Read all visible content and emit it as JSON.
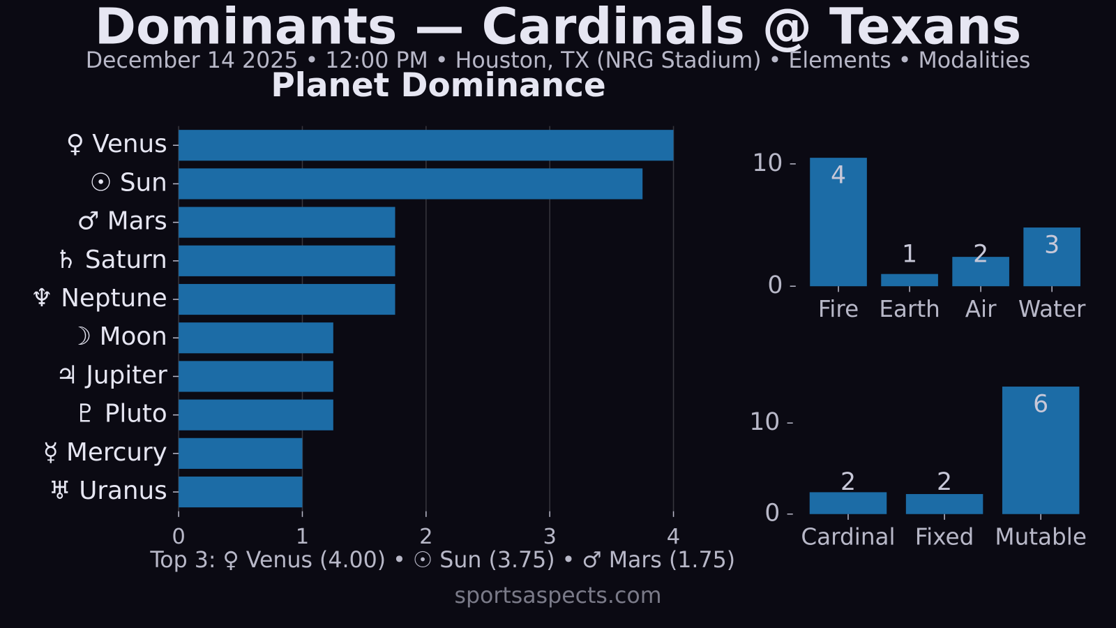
{
  "title": "Dominants — Cardinals @ Texans",
  "subtitle": "December 14 2025 • 12:00 PM • Houston, TX (NRG Stadium) • Elements • Modalities",
  "footer": "Top 3: ♀ Venus (4.00) • ☉ Sun (3.75) • ♂ Mars (1.75)",
  "credit": "sportsaspects.com",
  "chart_data": [
    {
      "type": "barh",
      "title": "Planet Dominance",
      "categories": [
        "♀ Venus",
        "☉ Sun",
        "♂ Mars",
        "♄ Saturn",
        "♆ Neptune",
        "☽ Moon",
        "♃ Jupiter",
        "♇ Pluto",
        "☿ Mercury",
        "♅ Uranus"
      ],
      "values": [
        4.0,
        3.75,
        1.75,
        1.75,
        1.75,
        1.25,
        1.25,
        1.25,
        1.0,
        1.0
      ],
      "color": "#1c6ca6",
      "xlim": [
        0,
        4.2
      ],
      "xticks": [
        0,
        1,
        2,
        3,
        4
      ],
      "grid": true
    },
    {
      "type": "bar",
      "categories": [
        "Fire",
        "Earth",
        "Air",
        "Water"
      ],
      "values": [
        10.5,
        1.0,
        2.4,
        4.8
      ],
      "counts": [
        4,
        1,
        2,
        3
      ],
      "color": "#1c6ca6",
      "ylim": [
        0,
        11
      ],
      "yticks": [
        0,
        10
      ]
    },
    {
      "type": "bar",
      "categories": [
        "Cardinal",
        "Fixed",
        "Mutable"
      ],
      "values": [
        2.4,
        2.2,
        14.0
      ],
      "counts": [
        2,
        2,
        6
      ],
      "color": "#1c6ca6",
      "ylim": [
        0,
        14.7
      ],
      "yticks": [
        0,
        10
      ]
    }
  ]
}
